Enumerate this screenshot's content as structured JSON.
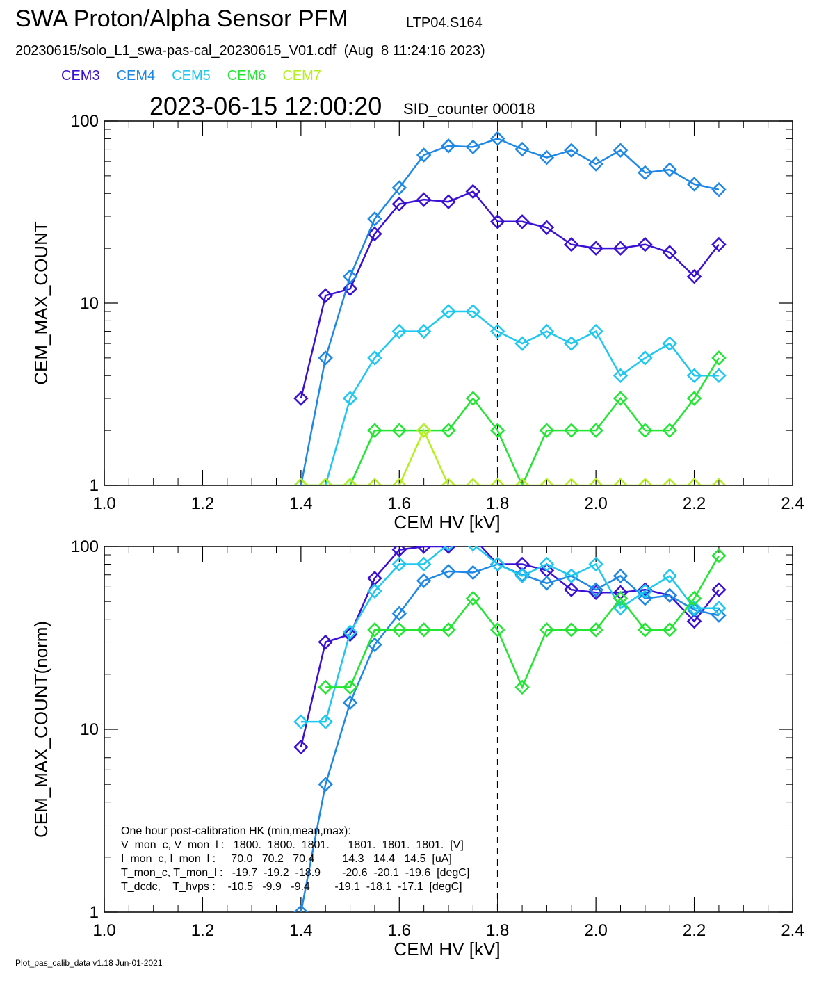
{
  "header": {
    "title": "SWA Proton/Alpha Sensor PFM",
    "tag": "LTP04.S164",
    "file_line": "20230615/solo_L1_swa-pas-cal_20230615_V01.cdf  (Aug  8 11:24:16 2023)",
    "timestamp": "2023-06-15 12:00:20",
    "sid": "SID_counter 00018"
  },
  "legend": [
    {
      "name": "CEM3",
      "color": "#3b10d6"
    },
    {
      "name": "CEM4",
      "color": "#1e88e6"
    },
    {
      "name": "CEM5",
      "color": "#1ec8f0"
    },
    {
      "name": "CEM6",
      "color": "#22e632"
    },
    {
      "name": "CEM7",
      "color": "#b4f01e"
    }
  ],
  "footer": "Plot_pas_calib_data v1.18 Jun-01-2021",
  "hk": {
    "heading": "One hour post-calibration HK (min,mean,max):",
    "lines": [
      "V_mon_c, V_mon_l :   1800.  1800.  1801.      1801.  1801.  1801.  [V]",
      "I_mon_c, I_mon_l :     70.0   70.2   70.4         14.3   14.4   14.5  [uA]",
      "T_mon_c, T_mon_l :   -19.7  -19.2  -18.9       -20.6  -20.1  -19.6  [degC]",
      "T_dcdc,    T_hvps :    -10.5   -9.9   -9.4        -19.1  -18.1  -17.1  [degC]"
    ]
  },
  "chart_data": [
    {
      "type": "line",
      "xlabel": "CEM HV [kV]",
      "ylabel": "CEM_MAX_COUNT",
      "xlim": [
        1.0,
        2.4
      ],
      "ylim": [
        1,
        100
      ],
      "yscale": "log",
      "xticks": [
        "1.0",
        "1.2",
        "1.4",
        "1.6",
        "1.8",
        "2.0",
        "2.2",
        "2.4"
      ],
      "yticks": [
        "1",
        "10",
        "100"
      ],
      "vline": 1.8,
      "x": [
        1.4,
        1.45,
        1.5,
        1.55,
        1.6,
        1.65,
        1.7,
        1.75,
        1.8,
        1.85,
        1.9,
        1.95,
        2.0,
        2.05,
        2.1,
        2.15,
        2.2,
        2.25
      ],
      "series": [
        {
          "name": "CEM3",
          "color": "#3b10d6",
          "values": [
            3,
            11,
            12,
            24,
            35,
            37,
            36,
            41,
            28,
            28,
            26,
            21,
            20,
            20,
            21,
            19,
            14,
            21
          ]
        },
        {
          "name": "CEM4",
          "color": "#1e88e6",
          "values": [
            1,
            5,
            14,
            29,
            43,
            65,
            73,
            72,
            80,
            70,
            63,
            69,
            58,
            69,
            52,
            54,
            45,
            42
          ]
        },
        {
          "name": "CEM5",
          "color": "#1ec8f0",
          "values": [
            0.9,
            1,
            3,
            5,
            7,
            7,
            9,
            9,
            7,
            6,
            7,
            6,
            7,
            4,
            5,
            6,
            4,
            4
          ]
        },
        {
          "name": "CEM6",
          "color": "#22e632",
          "values": [
            1,
            1,
            1,
            2,
            2,
            2,
            2,
            3,
            2,
            1,
            2,
            2,
            2,
            3,
            2,
            2,
            3,
            5
          ]
        },
        {
          "name": "CEM7",
          "color": "#b4f01e",
          "values": [
            1,
            1,
            1,
            1,
            1,
            2,
            1,
            1,
            1,
            1,
            1,
            1,
            1,
            1,
            1,
            1,
            1,
            1
          ]
        }
      ]
    },
    {
      "type": "line",
      "xlabel": "CEM HV [kV]",
      "ylabel": "CEM_MAX_COUNT(norm)",
      "xlim": [
        1.0,
        2.4
      ],
      "ylim": [
        1,
        100
      ],
      "yscale": "log",
      "xticks": [
        "1.0",
        "1.2",
        "1.4",
        "1.6",
        "1.8",
        "2.0",
        "2.2",
        "2.4"
      ],
      "yticks": [
        "1",
        "10",
        "100"
      ],
      "vline": 1.8,
      "x": [
        1.4,
        1.45,
        1.5,
        1.55,
        1.6,
        1.65,
        1.7,
        1.75,
        1.8,
        1.85,
        1.9,
        1.95,
        2.0,
        2.05,
        2.1,
        2.15,
        2.2,
        2.25
      ],
      "series": [
        {
          "name": "CEM3",
          "color": "#3b10d6",
          "values": [
            8,
            30,
            33,
            67,
            96,
            100,
            100,
            112,
            80,
            80,
            74,
            58,
            56,
            56,
            58,
            54,
            39,
            58
          ]
        },
        {
          "name": "CEM4",
          "color": "#1e88e6",
          "values": [
            1,
            5,
            14,
            29,
            43,
            65,
            73,
            72,
            80,
            70,
            63,
            69,
            58,
            69,
            52,
            54,
            45,
            42
          ]
        },
        {
          "name": "CEM5",
          "color": "#1ec8f0",
          "values": [
            11,
            11,
            34,
            57,
            80,
            80,
            103,
            103,
            80,
            69,
            80,
            69,
            80,
            46,
            57,
            69,
            46,
            46
          ]
        },
        {
          "name": "CEM6",
          "color": "#22e632",
          "values": [
            null,
            17,
            17,
            35,
            35,
            35,
            35,
            52,
            35,
            17,
            35,
            35,
            35,
            52,
            35,
            35,
            52,
            89
          ]
        }
      ]
    }
  ]
}
